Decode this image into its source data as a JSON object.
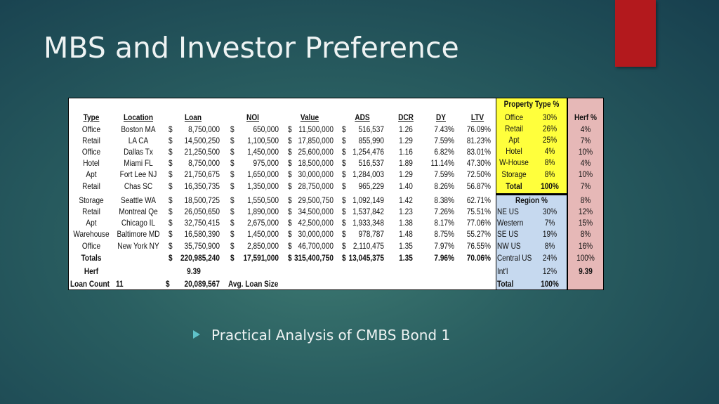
{
  "title": "MBS and Investor Preference",
  "bullet": "Practical Analysis of CMBS Bond 1",
  "table": {
    "currency": "$",
    "headers": [
      "Type",
      "Location",
      "Loan",
      "NOI",
      "Value",
      "ADS",
      "DCR",
      "DY",
      "LTV"
    ],
    "rows": [
      [
        "Office",
        "Boston MA",
        "8,750,000",
        "650,000",
        "11,500,000",
        "516,537",
        "1.26",
        "7.43%",
        "76.09%"
      ],
      [
        "Retail",
        "LA CA",
        "14,500,250",
        "1,100,500",
        "17,850,000",
        "855,990",
        "1.29",
        "7.59%",
        "81.23%"
      ],
      [
        "Office",
        "Dallas Tx",
        "21,250,500",
        "1,450,000",
        "25,600,000",
        "1,254,476",
        "1.16",
        "6.82%",
        "83.01%"
      ],
      [
        "Hotel",
        "Miami FL",
        "8,750,000",
        "975,000",
        "18,500,000",
        "516,537",
        "1.89",
        "11.14%",
        "47.30%"
      ],
      [
        "Apt",
        "Fort Lee NJ",
        "21,750,675",
        "1,650,000",
        "30,000,000",
        "1,284,003",
        "1.29",
        "7.59%",
        "72.50%"
      ],
      [
        "Retail",
        "Chas SC",
        "16,350,735",
        "1,350,000",
        "28,750,000",
        "965,229",
        "1.40",
        "8.26%",
        "56.87%"
      ],
      [
        "Storage",
        "Seattle WA",
        "18,500,725",
        "1,550,500",
        "29,500,750",
        "1,092,149",
        "1.42",
        "8.38%",
        "62.71%"
      ],
      [
        "Retail",
        "Montreal Qe",
        "26,050,650",
        "1,890,000",
        "34,500,000",
        "1,537,842",
        "1.23",
        "7.26%",
        "75.51%"
      ],
      [
        "Apt",
        "Chicago IL",
        "32,750,415",
        "2,675,000",
        "42,500,000",
        "1,933,348",
        "1.38",
        "8.17%",
        "77.06%"
      ],
      [
        "Warehouse",
        "Baltimore MD",
        "16,580,390",
        "1,450,000",
        "30,000,000",
        "978,787",
        "1.48",
        "8.75%",
        "55.27%"
      ],
      [
        "Office",
        "New York NY",
        "35,750,900",
        "2,850,000",
        "46,700,000",
        "2,110,475",
        "1.35",
        "7.97%",
        "76.55%"
      ]
    ],
    "totals": {
      "label": "Totals",
      "values": [
        "220,985,240",
        "17,591,000",
        "315,400,750",
        "13,045,375",
        "1.35",
        "7.96%",
        "70.06%"
      ]
    },
    "herf": {
      "label": "Herf",
      "value": "9.39"
    },
    "loan_count": {
      "label": "Loan Count",
      "count": "11",
      "avg": "20,089,567",
      "avg_label": "Avg. Loan Size"
    }
  },
  "property_type": {
    "header": "Property Type %",
    "rows": [
      [
        "Office",
        "30%"
      ],
      [
        "Retail",
        "26%"
      ],
      [
        "Apt",
        "25%"
      ],
      [
        "Hotel",
        "4%"
      ],
      [
        "W-House",
        "8%"
      ],
      [
        "Storage",
        "8%"
      ]
    ],
    "total": [
      "Total",
      "100%"
    ]
  },
  "region": {
    "header": "Region %",
    "rows": [
      [
        "NE US",
        "30%"
      ],
      [
        "Western",
        "7%"
      ],
      [
        "SE US",
        "19%"
      ],
      [
        "NW US",
        "8%"
      ],
      [
        "Central US",
        "24%"
      ],
      [
        "Int'l",
        "12%"
      ]
    ],
    "total": [
      "Total",
      "100%"
    ]
  },
  "herf_pct": {
    "header": "Herf %",
    "values": [
      "4%",
      "7%",
      "10%",
      "4%",
      "10%",
      "7%",
      "8%",
      "12%",
      "15%",
      "8%",
      "16%",
      "100%",
      "9.39"
    ]
  }
}
